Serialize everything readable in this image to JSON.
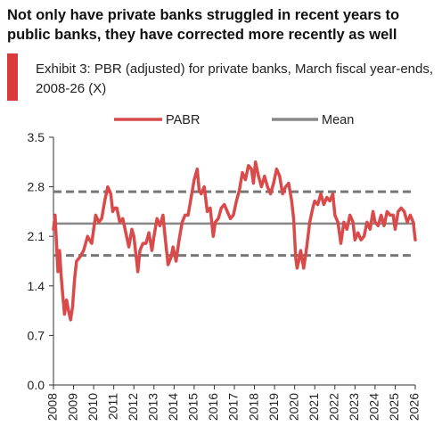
{
  "headline": "Not only have private banks struggled in recent years to public banks, they have corrected more recently as well",
  "exhibit": "Exhibit 3: PBR (adjusted) for private banks, March fiscal year-ends, 2008-26 (X)",
  "colors": {
    "series": "#d94a4a",
    "mean": "#888888",
    "band": "#777777",
    "axis": "#333333"
  },
  "chart_data": {
    "type": "line",
    "xlim": [
      2008,
      2026
    ],
    "ylim": [
      0,
      3.5
    ],
    "yticks": [
      "0.0",
      "0.7",
      "1.4",
      "2.1",
      "2.8",
      "3.5"
    ],
    "xticks": [
      "2008",
      "2009",
      "2010",
      "2011",
      "2012",
      "2013",
      "2014",
      "2015",
      "2016",
      "2017",
      "2018",
      "2019",
      "2020",
      "2021",
      "2022",
      "2023",
      "2024",
      "2025",
      "2026"
    ],
    "legend": {
      "position": "top",
      "entries": [
        "PABR",
        "Mean"
      ]
    },
    "mean": 2.28,
    "band_upper": 2.73,
    "band_lower": 1.83,
    "series": [
      {
        "name": "PABR",
        "x": [
          2008.0,
          2008.08,
          2008.15,
          2008.22,
          2008.3,
          2008.38,
          2008.45,
          2008.55,
          2008.65,
          2008.75,
          2008.85,
          2008.95,
          2009.05,
          2009.15,
          2009.3,
          2009.5,
          2009.7,
          2009.9,
          2010.0,
          2010.1,
          2010.25,
          2010.4,
          2010.55,
          2010.7,
          2010.85,
          2010.95,
          2011.05,
          2011.15,
          2011.3,
          2011.45,
          2011.6,
          2011.75,
          2011.9,
          2012.0,
          2012.1,
          2012.2,
          2012.3,
          2012.45,
          2012.6,
          2012.75,
          2012.9,
          2013.0,
          2013.15,
          2013.3,
          2013.45,
          2013.55,
          2013.7,
          2013.85,
          2013.95,
          2014.1,
          2014.25,
          2014.4,
          2014.55,
          2014.7,
          2014.85,
          2015.0,
          2015.15,
          2015.25,
          2015.35,
          2015.5,
          2015.65,
          2015.8,
          2015.95,
          2016.05,
          2016.2,
          2016.35,
          2016.5,
          2016.65,
          2016.8,
          2016.95,
          2017.1,
          2017.25,
          2017.4,
          2017.55,
          2017.7,
          2017.85,
          2017.95,
          2018.05,
          2018.2,
          2018.35,
          2018.5,
          2018.65,
          2018.8,
          2018.95,
          2019.1,
          2019.25,
          2019.4,
          2019.55,
          2019.7,
          2019.85,
          2019.95,
          2020.05,
          2020.12,
          2020.2,
          2020.3,
          2020.45,
          2020.6,
          2020.75,
          2020.9,
          2021.0,
          2021.15,
          2021.3,
          2021.45,
          2021.6,
          2021.75,
          2021.9,
          2022.0,
          2022.15,
          2022.3,
          2022.45,
          2022.6,
          2022.75,
          2022.9,
          2023.0,
          2023.15,
          2023.3,
          2023.45,
          2023.6,
          2023.75,
          2023.9,
          2024.0,
          2024.15,
          2024.3,
          2024.45,
          2024.6,
          2024.75,
          2024.9,
          2025.0,
          2025.15,
          2025.3,
          2025.45,
          2025.6,
          2025.75,
          2025.9,
          2026.0
        ],
        "y": [
          2.2,
          2.4,
          2.0,
          1.6,
          1.9,
          1.55,
          1.3,
          1.0,
          1.2,
          1.05,
          0.92,
          1.1,
          1.5,
          1.75,
          1.8,
          1.9,
          2.1,
          2.0,
          2.2,
          2.4,
          2.3,
          2.35,
          2.6,
          2.8,
          2.7,
          2.45,
          2.5,
          2.5,
          2.3,
          2.35,
          2.15,
          1.95,
          2.2,
          2.1,
          1.85,
          1.6,
          1.9,
          2.0,
          2.0,
          2.15,
          1.9,
          2.1,
          2.35,
          2.25,
          2.4,
          2.1,
          1.7,
          1.8,
          1.95,
          1.75,
          2.05,
          2.3,
          2.4,
          2.4,
          2.65,
          2.9,
          3.05,
          2.75,
          2.7,
          2.8,
          2.45,
          2.5,
          2.1,
          2.3,
          2.35,
          2.5,
          2.55,
          2.45,
          2.35,
          2.4,
          2.6,
          2.75,
          3.0,
          2.9,
          3.1,
          3.05,
          2.85,
          3.15,
          2.95,
          2.8,
          2.95,
          2.8,
          2.7,
          2.85,
          3.05,
          2.95,
          2.7,
          2.8,
          2.85,
          2.6,
          2.35,
          1.8,
          1.65,
          1.75,
          1.9,
          1.65,
          1.95,
          2.3,
          2.5,
          2.6,
          2.55,
          2.7,
          2.55,
          2.65,
          2.6,
          2.7,
          2.4,
          2.3,
          2.0,
          2.3,
          2.2,
          2.4,
          2.3,
          2.05,
          2.15,
          2.05,
          2.1,
          2.3,
          2.2,
          2.45,
          2.3,
          2.25,
          2.4,
          2.25,
          2.45,
          2.4,
          2.4,
          2.2,
          2.45,
          2.5,
          2.45,
          2.3,
          2.4,
          2.3,
          2.05
        ]
      }
    ]
  }
}
